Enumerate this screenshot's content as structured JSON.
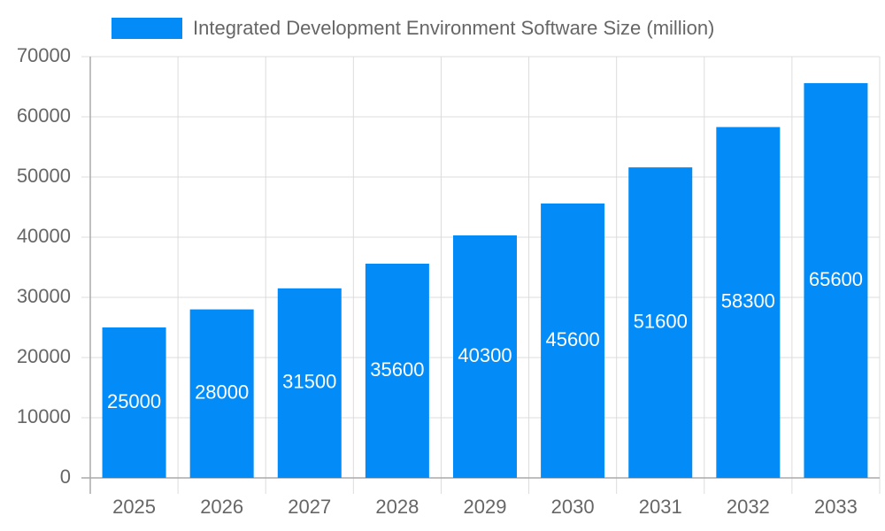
{
  "chart_data": {
    "type": "bar",
    "categories": [
      "2025",
      "2026",
      "2027",
      "2028",
      "2029",
      "2030",
      "2031",
      "2032",
      "2033"
    ],
    "series": [
      {
        "name": "Integrated Development Environment Software Size (million)",
        "color": "#038cf8",
        "values": [
          25000,
          28000,
          31500,
          35600,
          40300,
          45600,
          51600,
          58300,
          65600
        ]
      }
    ],
    "ylim": [
      0,
      70000
    ],
    "yticks": [
      0,
      10000,
      20000,
      30000,
      40000,
      50000,
      60000,
      70000
    ],
    "grid": true,
    "legend": "top",
    "data_labels": true
  }
}
